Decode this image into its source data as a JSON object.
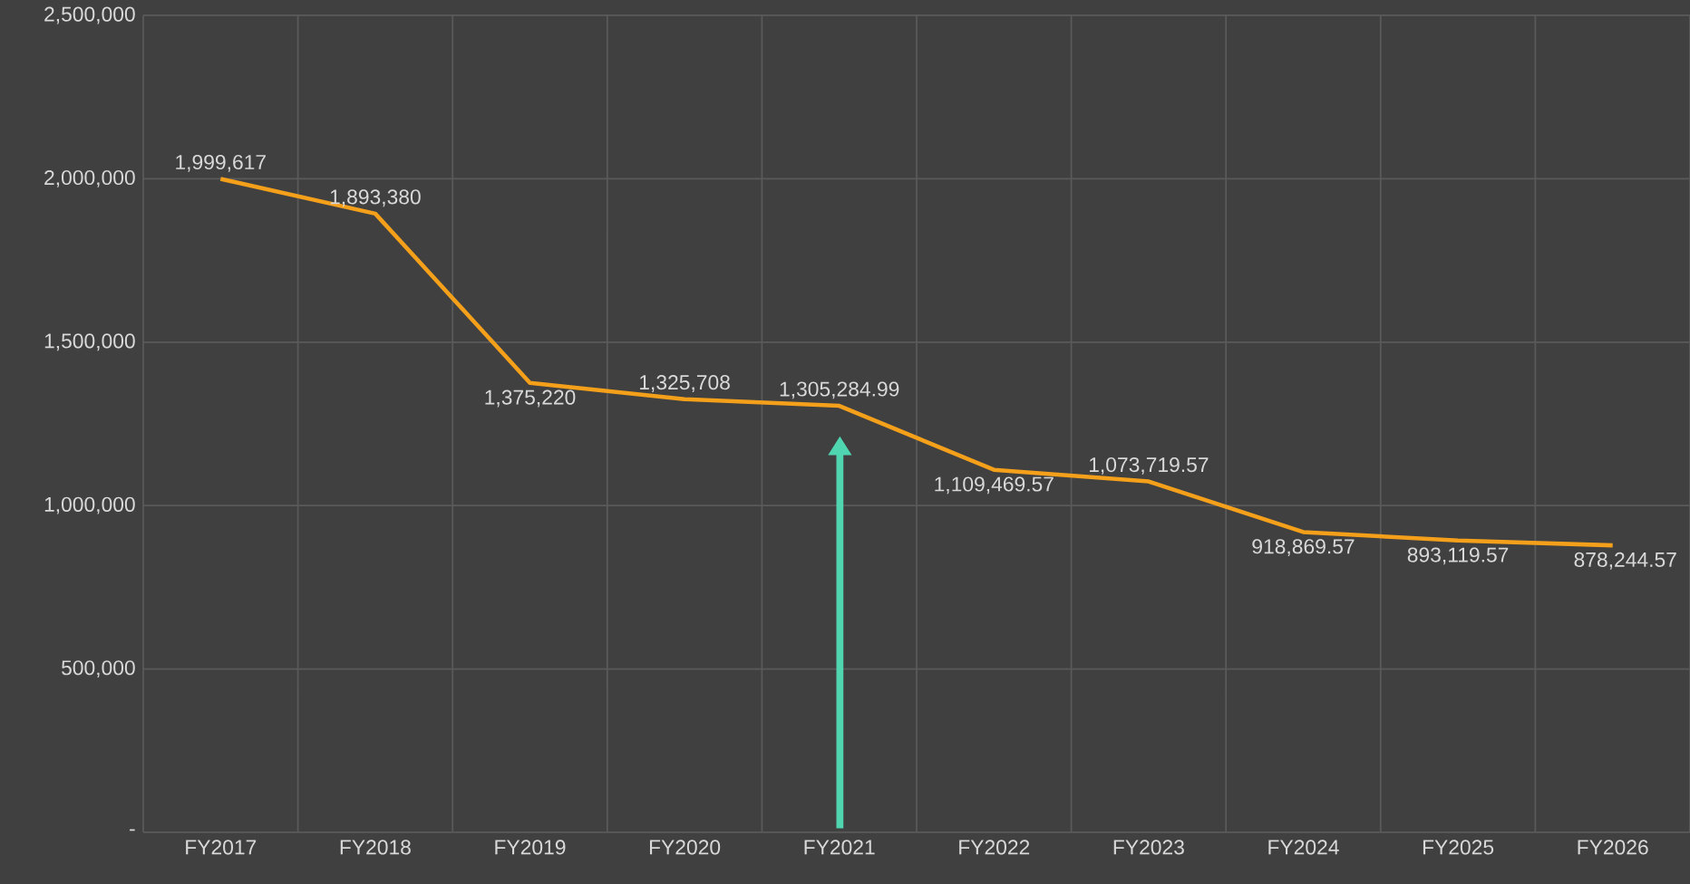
{
  "chart_data": {
    "type": "line",
    "categories": [
      "FY2017",
      "FY2018",
      "FY2019",
      "FY2020",
      "FY2021",
      "FY2022",
      "FY2023",
      "FY2024",
      "FY2025",
      "FY2026"
    ],
    "series": [
      {
        "color": "#f5a01a",
        "values": [
          1999617,
          1893380,
          1375220,
          1325708,
          1305284.99,
          1109469.57,
          1073719.57,
          918869.57,
          893119.57,
          878244.57
        ],
        "value_labels": [
          "1,999,617",
          "1,893,380",
          "1,375,220",
          "1,325,708",
          "1,305,284.99",
          "1,109,469.57",
          "1,073,719.57",
          "918,869.57",
          "893,119.57",
          "878,244.57"
        ]
      }
    ],
    "ylim": [
      0,
      2500000
    ],
    "yticks": [
      {
        "value": 0,
        "label": "-"
      },
      {
        "value": 500000,
        "label": "500,000"
      },
      {
        "value": 1000000,
        "label": "1,000,000"
      },
      {
        "value": 1500000,
        "label": "1,500,000"
      },
      {
        "value": 2000000,
        "label": "2,000,000"
      },
      {
        "value": 2500000,
        "label": "2,500,000"
      }
    ],
    "grid": true,
    "marker": "none",
    "line_style": "solid"
  }
}
